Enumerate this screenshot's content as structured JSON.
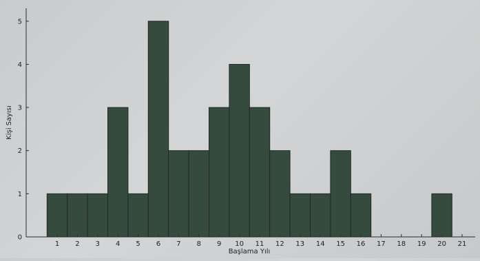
{
  "chart_data": {
    "type": "bar",
    "title": "",
    "xlabel": "Başlama Yılı",
    "ylabel": "Kişi Sayısı",
    "categories": [
      "1",
      "2",
      "3",
      "4",
      "5",
      "6",
      "7",
      "8",
      "9",
      "10",
      "11",
      "12",
      "13",
      "14",
      "15",
      "16",
      "17",
      "18",
      "19",
      "20",
      "21"
    ],
    "values": [
      1,
      1,
      1,
      3,
      1,
      5,
      2,
      2,
      3,
      4,
      3,
      2,
      1,
      1,
      2,
      1,
      0,
      0,
      0,
      1,
      0
    ],
    "yticks": [
      "0",
      "1",
      "2",
      "3",
      "4",
      "5"
    ],
    "ylim": [
      0,
      5.3
    ],
    "grid": false,
    "bar_color": "#344b3e"
  }
}
